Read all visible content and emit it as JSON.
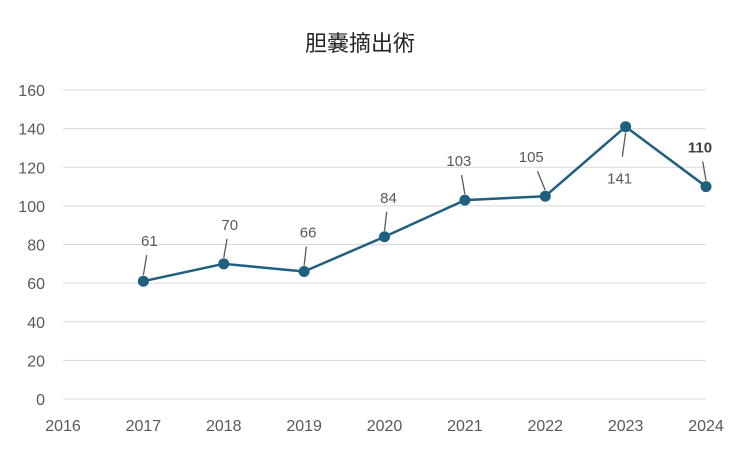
{
  "chart_data": {
    "type": "line",
    "title": "胆嚢摘出術",
    "x": [
      2017,
      2018,
      2019,
      2020,
      2021,
      2022,
      2023,
      2024
    ],
    "x_tick_labels": [
      "2016",
      "2017",
      "2018",
      "2019",
      "2020",
      "2021",
      "2022",
      "2023",
      "2024"
    ],
    "xlim": [
      2016,
      2024
    ],
    "ylim": [
      0,
      160
    ],
    "y_ticks": [
      0,
      20,
      40,
      60,
      80,
      100,
      120,
      140,
      160
    ],
    "series": [
      {
        "values": [
          61,
          70,
          66,
          84,
          103,
          105,
          141,
          110
        ],
        "color": "#1f5f7f"
      }
    ],
    "data_labels": [
      "61",
      "70",
      "66",
      "84",
      "103",
      "105",
      "141",
      "110"
    ],
    "emphasized_label_index": 7,
    "grid": true,
    "legend": "none",
    "gridline_color": "#d9d9d9",
    "text_color": "#595959"
  }
}
